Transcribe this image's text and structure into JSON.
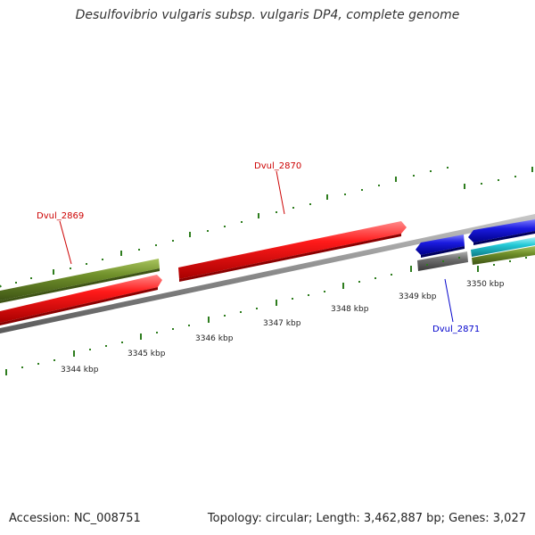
{
  "title": "Desulfovibrio vulgaris subsp. vulgaris DP4, complete genome",
  "footer": {
    "accession": "Accession: NC_008751",
    "summary": "Topology: circular; Length: 3,462,887 bp; Genes: 3,027"
  },
  "colors": {
    "backbone": "#8a8a8a",
    "tick": "#2e7d1e",
    "red_gene": "#ff1010",
    "olive_gene": "#6f8f2a",
    "blue_gene": "#1a1adf",
    "gray_gene": "#6e6e6e",
    "cyan_gene": "#22c9d6",
    "red_label": "#cc0000",
    "blue_label": "#0000cc"
  },
  "scale_labels": [
    "3344 kbp",
    "3345 kbp",
    "3346 kbp",
    "3347 kbp",
    "3348 kbp",
    "3349 kbp",
    "3350 kbp"
  ],
  "gene_labels": [
    {
      "name": "Dvul_2869",
      "color": "red"
    },
    {
      "name": "Dvul_2870",
      "color": "red"
    },
    {
      "name": "Dvul_2871",
      "color": "blue"
    }
  ]
}
